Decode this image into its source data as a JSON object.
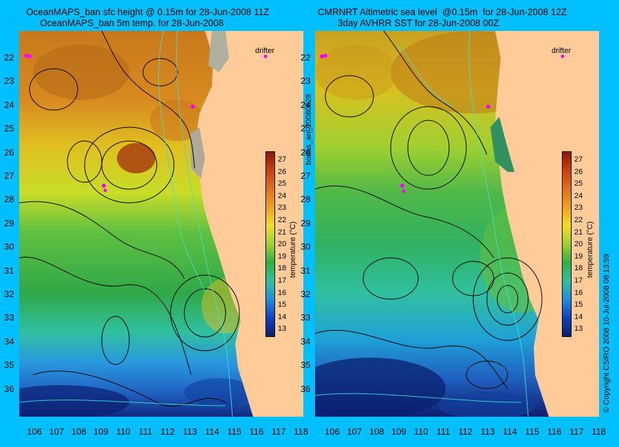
{
  "left": {
    "title_line1": "OceanMAPS_ban sfc height @ 0.15m for 28-Jun-2008 11Z",
    "title_line2": "OceanMAPS_ban 5m temp. for 28-Jun-2008"
  },
  "right": {
    "title_line1": "CMRNRT Altimetric sea level  @0.15m  for 28-Jun-2008 12Z",
    "title_line2": "3day AVHRR SST for 28-Jun-2008 00Z"
  },
  "drifter_label": "drifter",
  "lat_labels": [
    "22",
    "23",
    "24",
    "25",
    "26",
    "27",
    "28",
    "29",
    "30",
    "31",
    "32",
    "33",
    "34",
    "35",
    "36"
  ],
  "lon_labels": [
    "106",
    "107",
    "108",
    "109",
    "110",
    "111",
    "112",
    "113",
    "114",
    "115",
    "116",
    "117",
    "118"
  ],
  "colorbar": {
    "ticks": [
      "27",
      "26",
      "25",
      "24",
      "23",
      "22",
      "21",
      "20",
      "19",
      "18",
      "17",
      "16",
      "15",
      "14",
      "13"
    ],
    "title": "temperature (°C)"
  },
  "side_text_left": "bodas_an_20080628",
  "side_text_right": "© Copyright CSIRO 2008   10-Jul-2008 08:13:59",
  "colors": {
    "background": "#00bfff",
    "land": "#ffcc99",
    "contour": "#000000",
    "isobath": "#40e0d0",
    "drifter": "#ff00ff",
    "warm": "#b33a00",
    "mid": "#f0e020",
    "cool": "#20a040",
    "cold": "#0a2a80"
  }
}
